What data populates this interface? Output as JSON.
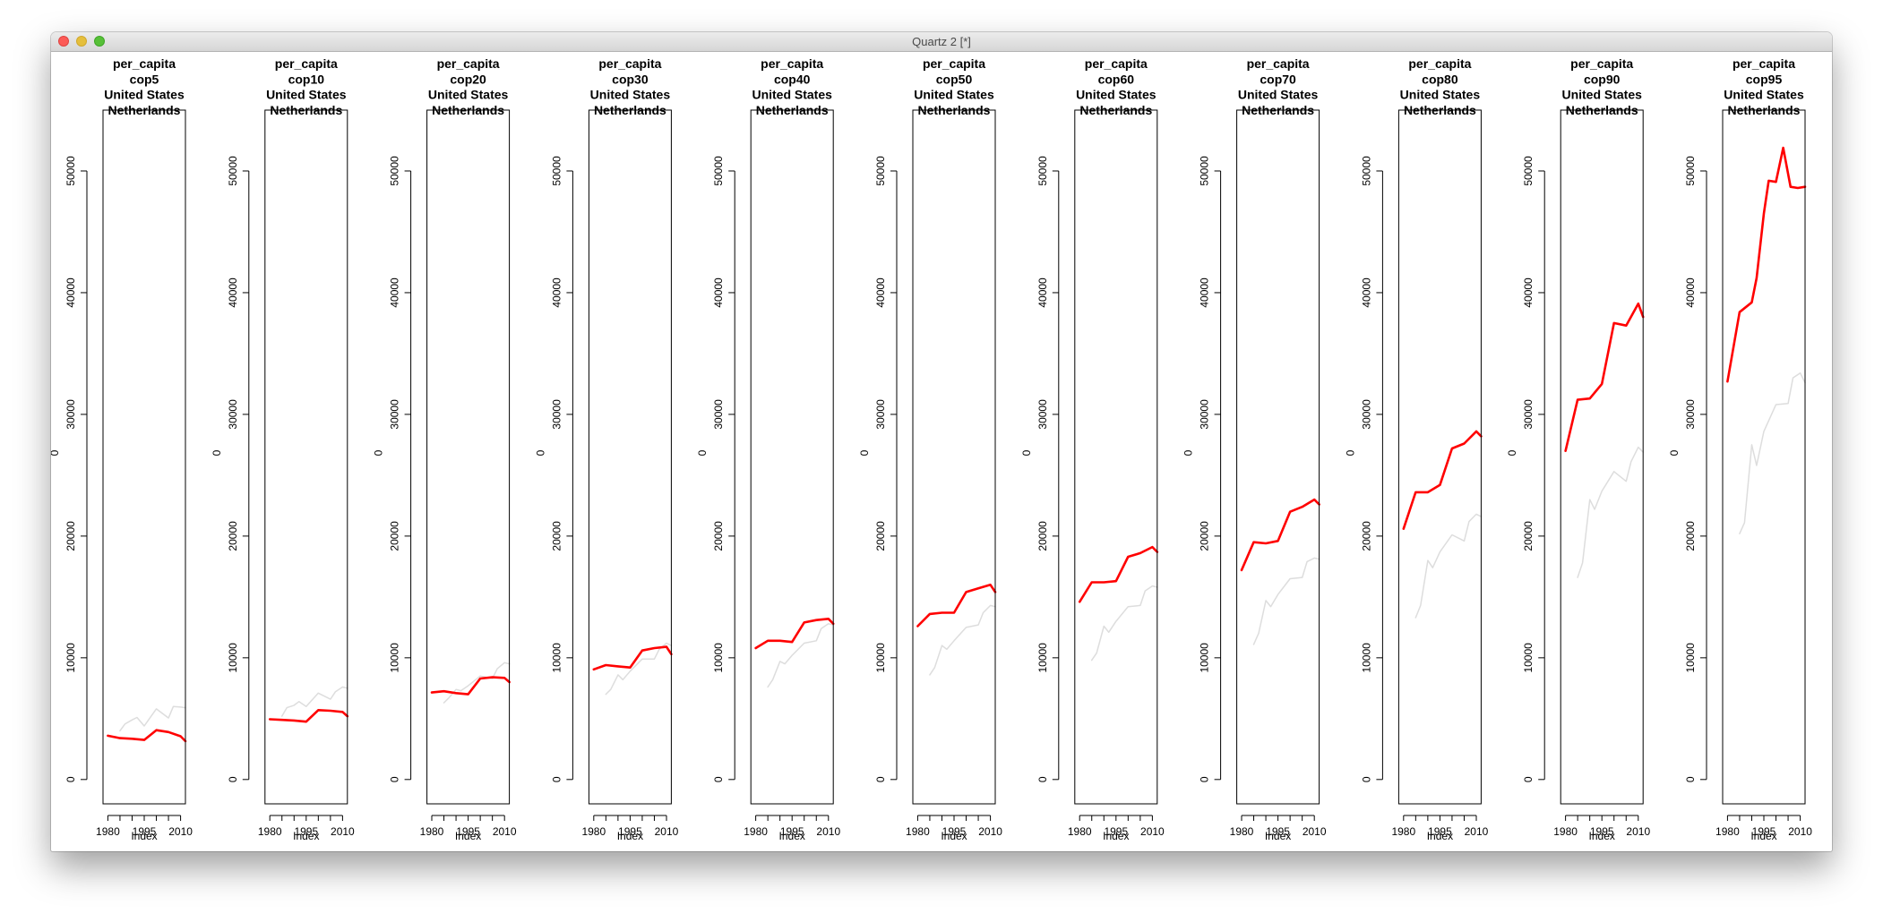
{
  "window": {
    "title": "Quartz 2 [*]"
  },
  "chart_data": {
    "type": "line",
    "panels": [
      {
        "title": [
          "per_capita",
          "cop5",
          "United States",
          "Netherlands"
        ],
        "series": [
          {
            "name": "United States",
            "color": "#ff0000",
            "x": [
              1980,
              1985,
              1990,
              1995,
              2000,
              2005,
              2010,
              2012
            ],
            "y": [
              3600,
              3400,
              3350,
              3250,
              4050,
              3900,
              3550,
              3150
            ]
          },
          {
            "name": "Netherlands",
            "color": "#dddddd",
            "x": [
              1985,
              1987,
              1990,
              1992,
              1995,
              2000,
              2005,
              2007,
              2010,
              2012
            ],
            "y": [
              4000,
              4550,
              4900,
              5100,
              4400,
              5800,
              5050,
              6000,
              5950,
              5900
            ]
          }
        ]
      },
      {
        "title": [
          "per_capita",
          "cop10",
          "United States",
          "Netherlands"
        ],
        "series": [
          {
            "name": "United States",
            "color": "#ff0000",
            "x": [
              1980,
              1985,
              1990,
              1995,
              2000,
              2005,
              2010,
              2012
            ],
            "y": [
              4950,
              4900,
              4850,
              4750,
              5700,
              5650,
              5550,
              5200
            ]
          },
          {
            "name": "Netherlands",
            "color": "#dddddd",
            "x": [
              1985,
              1987,
              1990,
              1992,
              1995,
              2000,
              2005,
              2007,
              2010,
              2012
            ],
            "y": [
              5200,
              5900,
              6100,
              6400,
              6000,
              7100,
              6600,
              7200,
              7600,
              7500
            ]
          }
        ]
      },
      {
        "title": [
          "per_capita",
          "cop20",
          "United States",
          "Netherlands"
        ],
        "series": [
          {
            "name": "United States",
            "color": "#ff0000",
            "x": [
              1980,
              1985,
              1990,
              1995,
              2000,
              2005,
              2010,
              2012
            ],
            "y": [
              7150,
              7250,
              7100,
              7000,
              8300,
              8400,
              8350,
              8000
            ]
          },
          {
            "name": "Netherlands",
            "color": "#dddddd",
            "x": [
              1985,
              1987,
              1990,
              1992,
              1995,
              2000,
              2005,
              2007,
              2010,
              2012
            ],
            "y": [
              6300,
              6700,
              7400,
              7300,
              7700,
              8500,
              8300,
              9100,
              9600,
              9500
            ]
          }
        ]
      },
      {
        "title": [
          "per_capita",
          "cop30",
          "United States",
          "Netherlands"
        ],
        "series": [
          {
            "name": "United States",
            "color": "#ff0000",
            "x": [
              1980,
              1985,
              1990,
              1995,
              2000,
              2005,
              2010,
              2012
            ],
            "y": [
              9050,
              9400,
              9300,
              9200,
              10600,
              10800,
              10900,
              10300
            ]
          },
          {
            "name": "Netherlands",
            "color": "#dddddd",
            "x": [
              1985,
              1987,
              1990,
              1992,
              1995,
              2000,
              2005,
              2007,
              2010,
              2012
            ],
            "y": [
              7000,
              7400,
              8600,
              8200,
              8900,
              9900,
              9900,
              10700,
              11200,
              11000
            ]
          }
        ]
      },
      {
        "title": [
          "per_capita",
          "cop40",
          "United States",
          "Netherlands"
        ],
        "series": [
          {
            "name": "United States",
            "color": "#ff0000",
            "x": [
              1980,
              1985,
              1990,
              1995,
              2000,
              2005,
              2010,
              2012
            ],
            "y": [
              10800,
              11400,
              11400,
              11300,
              12900,
              13100,
              13200,
              12800
            ]
          },
          {
            "name": "Netherlands",
            "color": "#dddddd",
            "x": [
              1985,
              1987,
              1990,
              1992,
              1995,
              2000,
              2005,
              2007,
              2010,
              2012
            ],
            "y": [
              7600,
              8200,
              9700,
              9500,
              10200,
              11200,
              11400,
              12400,
              12800,
              12700
            ]
          }
        ]
      },
      {
        "title": [
          "per_capita",
          "cop50",
          "United States",
          "Netherlands"
        ],
        "series": [
          {
            "name": "United States",
            "color": "#ff0000",
            "x": [
              1980,
              1985,
              1990,
              1995,
              2000,
              2005,
              2010,
              2012
            ],
            "y": [
              12600,
              13600,
              13700,
              13700,
              15400,
              15700,
              16000,
              15400
            ]
          },
          {
            "name": "Netherlands",
            "color": "#dddddd",
            "x": [
              1985,
              1987,
              1990,
              1992,
              1995,
              2000,
              2005,
              2007,
              2010,
              2012
            ],
            "y": [
              8600,
              9200,
              11000,
              10700,
              11400,
              12500,
              12700,
              13700,
              14300,
              14200
            ]
          }
        ]
      },
      {
        "title": [
          "per_capita",
          "cop60",
          "United States",
          "Netherlands"
        ],
        "series": [
          {
            "name": "United States",
            "color": "#ff0000",
            "x": [
              1980,
              1985,
              1990,
              1995,
              2000,
              2005,
              2010,
              2012
            ],
            "y": [
              14600,
              16200,
              16200,
              16300,
              18300,
              18600,
              19100,
              18700
            ]
          },
          {
            "name": "Netherlands",
            "color": "#dddddd",
            "x": [
              1985,
              1987,
              1990,
              1992,
              1995,
              2000,
              2005,
              2007,
              2010,
              2012
            ],
            "y": [
              9800,
              10400,
              12600,
              12100,
              13000,
              14200,
              14300,
              15500,
              15900,
              15800
            ]
          }
        ]
      },
      {
        "title": [
          "per_capita",
          "cop70",
          "United States",
          "Netherlands"
        ],
        "series": [
          {
            "name": "United States",
            "color": "#ff0000",
            "x": [
              1980,
              1985,
              1990,
              1995,
              2000,
              2005,
              2010,
              2012
            ],
            "y": [
              17200,
              19500,
              19400,
              19600,
              22000,
              22400,
              23000,
              22600
            ]
          },
          {
            "name": "Netherlands",
            "color": "#dddddd",
            "x": [
              1985,
              1987,
              1990,
              1992,
              1995,
              2000,
              2005,
              2007,
              2010,
              2012
            ],
            "y": [
              11100,
              12000,
              14700,
              14200,
              15200,
              16500,
              16600,
              17900,
              18200,
              18100
            ]
          }
        ]
      },
      {
        "title": [
          "per_capita",
          "cop80",
          "United States",
          "Netherlands"
        ],
        "series": [
          {
            "name": "United States",
            "color": "#ff0000",
            "x": [
              1980,
              1985,
              1990,
              1995,
              2000,
              2005,
              2010,
              2012
            ],
            "y": [
              20600,
              23600,
              23600,
              24200,
              27200,
              27600,
              28600,
              28200
            ]
          },
          {
            "name": "Netherlands",
            "color": "#dddddd",
            "x": [
              1985,
              1987,
              1990,
              1992,
              1995,
              2000,
              2005,
              2007,
              2010,
              2012
            ],
            "y": [
              13300,
              14300,
              18000,
              17400,
              18700,
              20100,
              19600,
              21200,
              21800,
              21600
            ]
          }
        ]
      },
      {
        "title": [
          "per_capita",
          "cop90",
          "United States",
          "Netherlands"
        ],
        "series": [
          {
            "name": "United States",
            "color": "#ff0000",
            "x": [
              1980,
              1985,
              1990,
              1995,
              2000,
              2005,
              2010,
              2012
            ],
            "y": [
              27000,
              31200,
              31300,
              32500,
              37500,
              37300,
              39100,
              38000
            ]
          },
          {
            "name": "Netherlands",
            "color": "#dddddd",
            "x": [
              1985,
              1987,
              1990,
              1992,
              1995,
              2000,
              2005,
              2007,
              2010,
              2012
            ],
            "y": [
              16600,
              17800,
              23000,
              22200,
              23700,
              25300,
              24500,
              26100,
              27300,
              26900
            ]
          }
        ]
      },
      {
        "title": [
          "per_capita",
          "cop95",
          "United States",
          "Netherlands"
        ],
        "series": [
          {
            "name": "United States",
            "color": "#ff0000",
            "x": [
              1980,
              1985,
              1990,
              1992,
              1995,
              1997,
              2000,
              2003,
              2006,
              2009,
              2012
            ],
            "y": [
              32700,
              38400,
              39200,
              41200,
              46500,
              49200,
              49100,
              51900,
              48700,
              48600,
              48700
            ]
          },
          {
            "name": "Netherlands",
            "color": "#dddddd",
            "x": [
              1985,
              1987,
              1990,
              1992,
              1995,
              2000,
              2005,
              2007,
              2010,
              2012
            ],
            "y": [
              20200,
              21100,
              27500,
              25800,
              28600,
              30800,
              30900,
              33000,
              33400,
              32600
            ]
          }
        ]
      }
    ],
    "xlabel": "Index",
    "ylabel": "0",
    "xlim": [
      1978,
      2012
    ],
    "ylim": [
      -2000,
      55000
    ],
    "x_ticks": [
      1980,
      1995,
      2010
    ],
    "y_ticks": [
      0,
      10000,
      20000,
      30000,
      40000,
      50000
    ],
    "grid": false
  }
}
